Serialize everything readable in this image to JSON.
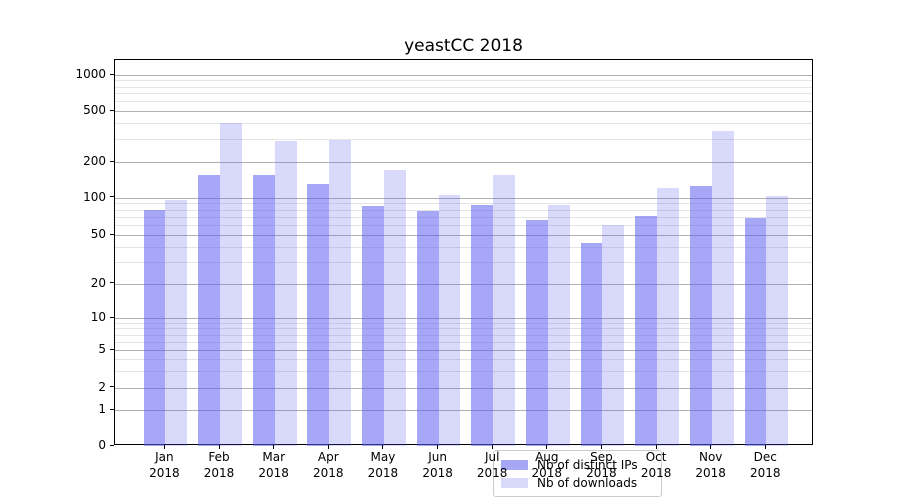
{
  "title": "yeastCC 2018",
  "legend": {
    "items": [
      {
        "label": "Nb of distinct IPs",
        "color": "rgba(95,95,240,0.55)"
      },
      {
        "label": "Nb of downloads",
        "color": "rgba(95,95,240,0.24)"
      }
    ]
  },
  "axes": {
    "y_tick_labels": [
      "1000",
      "500",
      "200",
      "100",
      "50",
      "20",
      "10",
      "5",
      "2",
      "1",
      "0"
    ],
    "x_tick_month_labels": [
      "Jan",
      "Feb",
      "Mar",
      "Apr",
      "May",
      "Jun",
      "Jul",
      "Aug",
      "Sep",
      "Oct",
      "Nov",
      "Dec"
    ],
    "x_tick_year_label": "2018"
  },
  "colors": {
    "bar_distinct_ips": "rgba(95,95,240,0.55)",
    "bar_downloads": "rgba(95,95,240,0.24)",
    "grid_major": "#b0b0b0",
    "grid_minor": "#e4e4e4",
    "spine": "#000000"
  },
  "chart_data": {
    "type": "bar",
    "title": "yeastCC 2018",
    "categories": [
      "Jan 2018",
      "Feb 2018",
      "Mar 2018",
      "Apr 2018",
      "May 2018",
      "Jun 2018",
      "Jul 2018",
      "Aug 2018",
      "Sep 2018",
      "Oct 2018",
      "Nov 2018",
      "Dec 2018"
    ],
    "series": [
      {
        "name": "Nb of distinct IPs",
        "values": [
          79,
          155,
          155,
          130,
          85,
          78,
          88,
          66,
          43,
          71,
          125,
          68
        ]
      },
      {
        "name": "Nb of downloads",
        "values": [
          95,
          400,
          290,
          295,
          170,
          106,
          155,
          87,
          60,
          120,
          350,
          103
        ]
      }
    ],
    "xlabel": "",
    "ylabel": "",
    "yscale": "symlog-like (log above 1, linear 0-1)",
    "ylim": [
      0,
      1400
    ],
    "y_major_ticks": [
      0,
      1,
      2,
      5,
      10,
      20,
      50,
      100,
      200,
      500,
      1000
    ],
    "y_minor_gridlines": [
      900,
      800,
      700,
      600,
      400,
      300,
      90,
      80,
      70,
      60,
      40,
      30,
      9,
      8,
      7,
      6,
      4,
      3
    ],
    "grid": true,
    "legend_position": "lower center"
  }
}
